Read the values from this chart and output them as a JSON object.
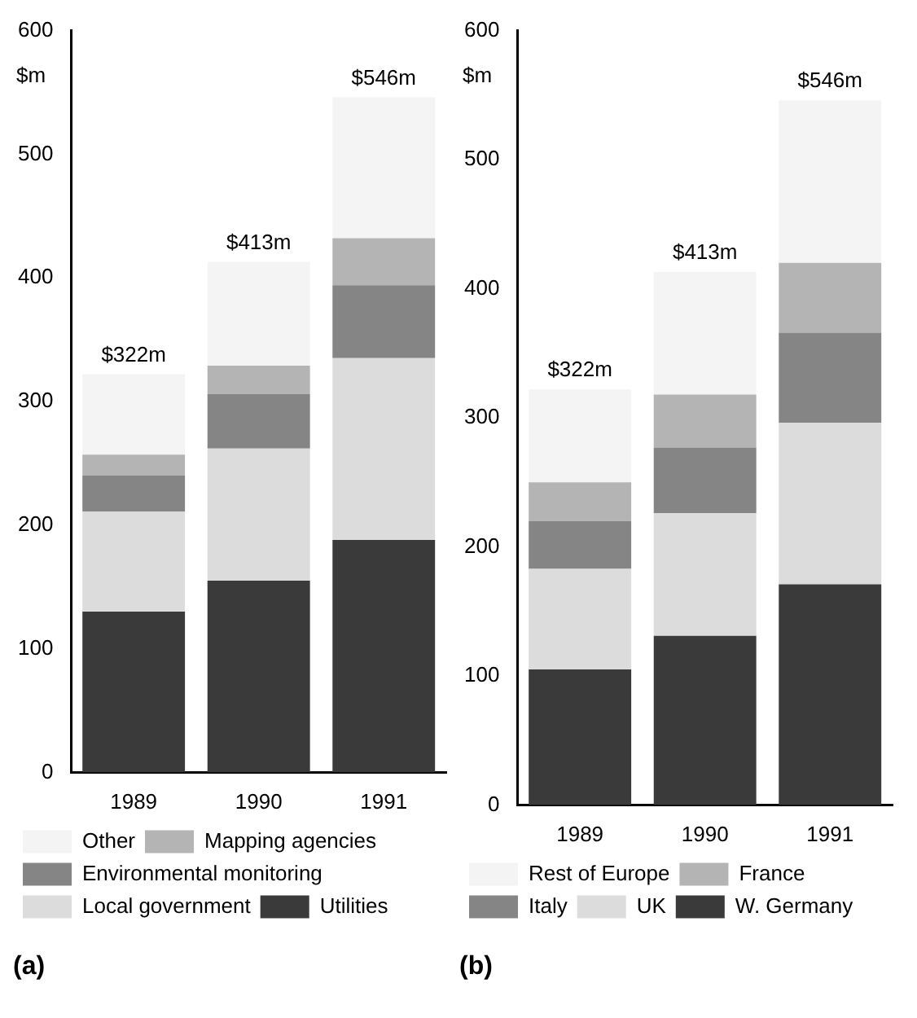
{
  "chart_data": [
    {
      "type": "bar",
      "title": "(a)",
      "ylabel": "$m",
      "categories": [
        "1989",
        "1990",
        "1991"
      ],
      "stacked": true,
      "ylim": [
        0,
        600
      ],
      "yticks": [
        0,
        100,
        200,
        300,
        400,
        500,
        600
      ],
      "grid": false,
      "legend": "bottom",
      "totals": [
        "$322m",
        "$413m",
        "$546m"
      ],
      "series": [
        {
          "name": "Utilities",
          "color": "#3a3a3a",
          "values": [
            130,
            155,
            188
          ]
        },
        {
          "name": "Local government",
          "color": "#dcdcdc",
          "values": [
            81,
            107,
            147
          ]
        },
        {
          "name": "Environmental monitoring",
          "color": "#858585",
          "values": [
            29,
            44,
            59
          ]
        },
        {
          "name": "Mapping agencies",
          "color": "#b4b4b4",
          "values": [
            17,
            23,
            38
          ]
        },
        {
          "name": "Other",
          "color": "#f4f4f4",
          "values": [
            65,
            84,
            114
          ]
        }
      ]
    },
    {
      "type": "bar",
      "title": "(b)",
      "ylabel": "$m",
      "categories": [
        "1989",
        "1990",
        "1991"
      ],
      "stacked": true,
      "ylim": [
        0,
        600
      ],
      "yticks": [
        0,
        100,
        200,
        300,
        400,
        500,
        600
      ],
      "grid": false,
      "legend": "bottom",
      "totals": [
        "$322m",
        "$413m",
        "$546m"
      ],
      "series": [
        {
          "name": "W. Germany",
          "color": "#3a3a3a",
          "values": [
            105,
            131,
            171
          ]
        },
        {
          "name": "UK",
          "color": "#dcdcdc",
          "values": [
            78,
            95,
            125
          ]
        },
        {
          "name": "Italy",
          "color": "#858585",
          "values": [
            37,
            51,
            70
          ]
        },
        {
          "name": "France",
          "color": "#b4b4b4",
          "values": [
            30,
            41,
            54
          ]
        },
        {
          "name": "Rest of Europe",
          "color": "#f4f4f4",
          "values": [
            72,
            95,
            126
          ]
        }
      ]
    }
  ]
}
